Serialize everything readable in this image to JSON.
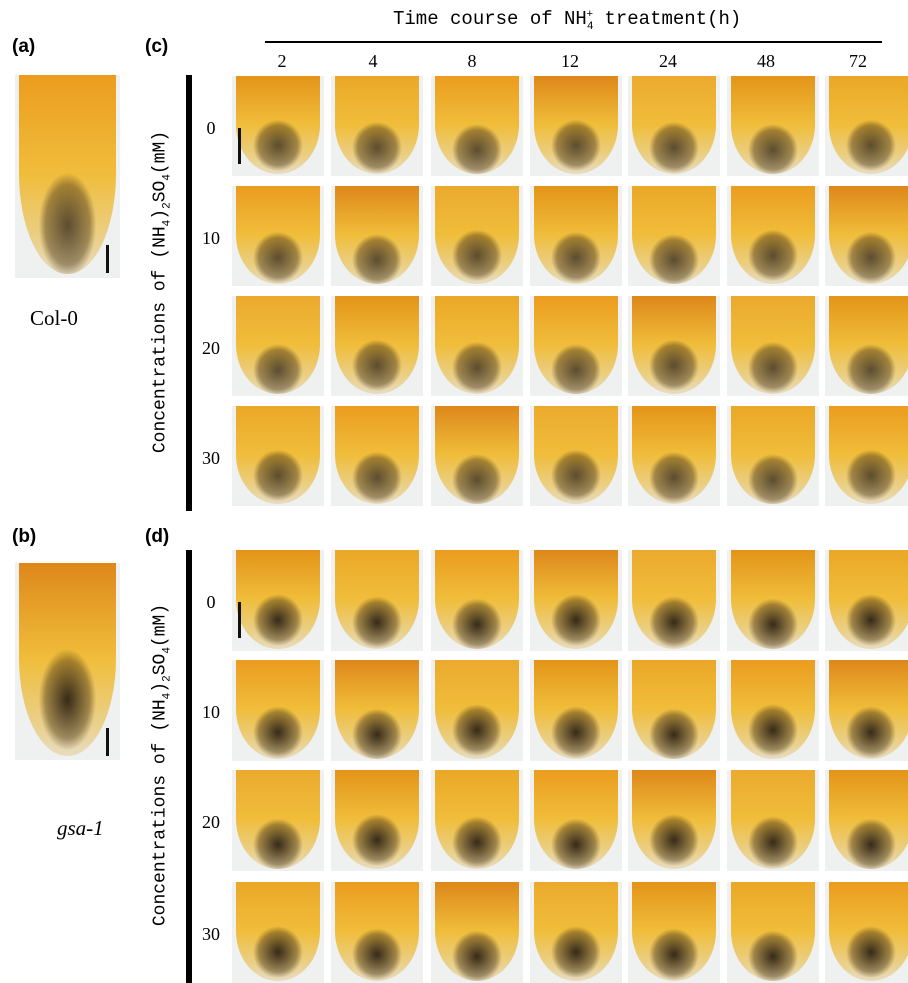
{
  "panels": {
    "a": {
      "label": "(a)",
      "caption": "Col-0"
    },
    "b": {
      "label": "(b)",
      "caption": "gsa-1"
    },
    "c": {
      "label": "(c)"
    },
    "d": {
      "label": "(d)"
    }
  },
  "header": {
    "title_parts": [
      "Time course of NH",
      "4",
      "+",
      " treatment(h)"
    ],
    "times": [
      "2",
      "4",
      "8",
      "12",
      "24",
      "48",
      "72"
    ]
  },
  "y_label_parts": [
    "Concentrations of  (NH",
    "4",
    ")",
    "2",
    "SO",
    "4",
    "(mM)"
  ],
  "concentrations": [
    "0",
    "10",
    "20",
    "30"
  ]
}
